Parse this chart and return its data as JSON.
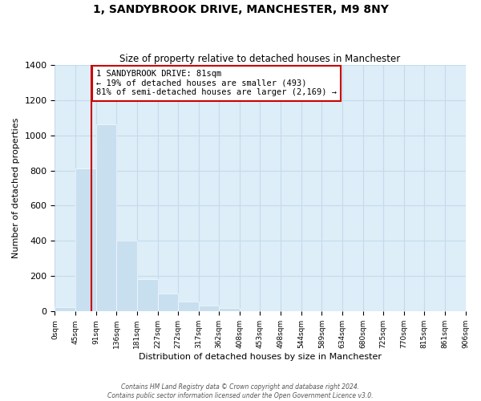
{
  "title": "1, SANDYBROOK DRIVE, MANCHESTER, M9 8NY",
  "subtitle": "Size of property relative to detached houses in Manchester",
  "xlabel": "Distribution of detached houses by size in Manchester",
  "ylabel": "Number of detached properties",
  "bin_edges": [
    0,
    45,
    91,
    136,
    181,
    227,
    272,
    317,
    362,
    408,
    453,
    498,
    544,
    589,
    634,
    680,
    725,
    770,
    815,
    861,
    906
  ],
  "bar_heights": [
    25,
    810,
    1060,
    400,
    185,
    100,
    55,
    35,
    20,
    0,
    0,
    0,
    0,
    0,
    0,
    0,
    0,
    0,
    0,
    0
  ],
  "bar_color": "#c8dff0",
  "property_line_x": 81,
  "property_line_color": "#cc0000",
  "annotation_text": "1 SANDYBROOK DRIVE: 81sqm\n← 19% of detached houses are smaller (493)\n81% of semi-detached houses are larger (2,169) →",
  "annotation_box_edgecolor": "#cc0000",
  "annotation_box_facecolor": "white",
  "xlim": [
    0,
    906
  ],
  "ylim": [
    0,
    1400
  ],
  "yticks": [
    0,
    200,
    400,
    600,
    800,
    1000,
    1200,
    1400
  ],
  "tick_labels": [
    "0sqm",
    "45sqm",
    "91sqm",
    "136sqm",
    "181sqm",
    "227sqm",
    "272sqm",
    "317sqm",
    "362sqm",
    "408sqm",
    "453sqm",
    "498sqm",
    "544sqm",
    "589sqm",
    "634sqm",
    "680sqm",
    "725sqm",
    "770sqm",
    "815sqm",
    "861sqm",
    "906sqm"
  ],
  "footer_text": "Contains HM Land Registry data © Crown copyright and database right 2024.\nContains public sector information licensed under the Open Government Licence v3.0.",
  "grid_color": "#c5daea",
  "background_color": "#ddeef8"
}
